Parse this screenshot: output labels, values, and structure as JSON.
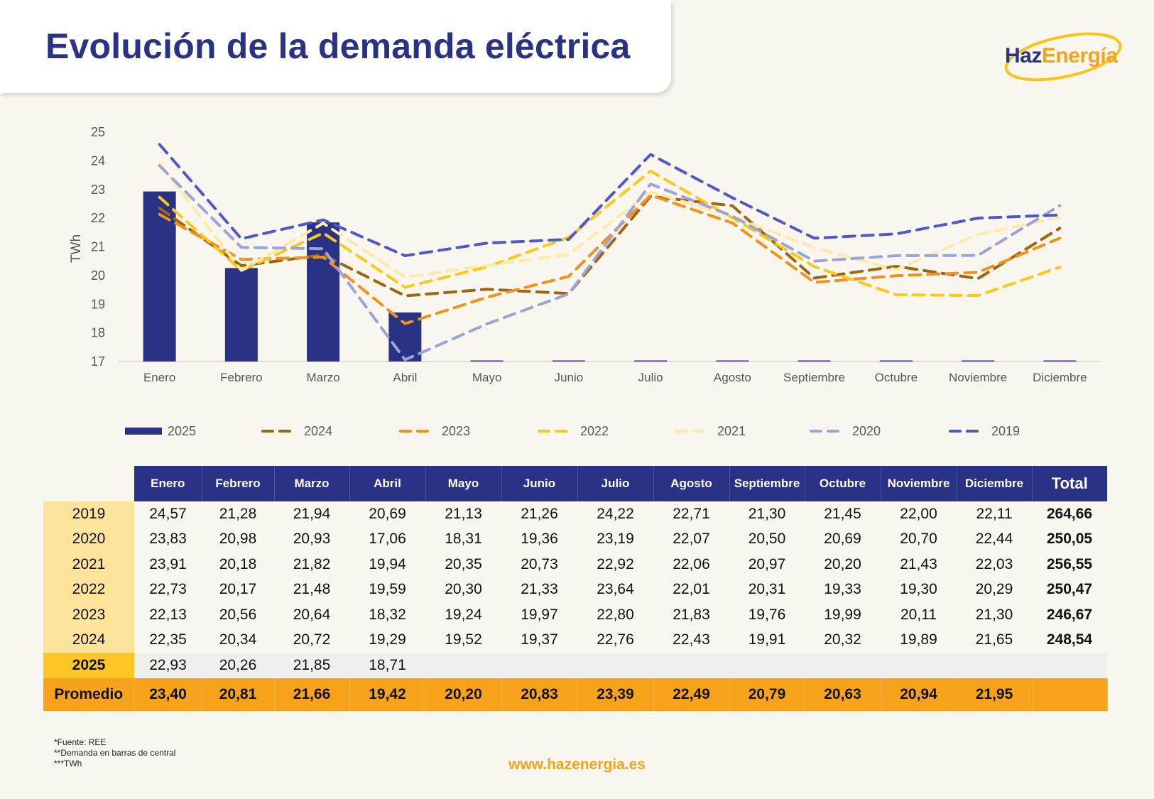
{
  "title": "Evolución de la demanda eléctrica",
  "logo": {
    "part1": "Haz",
    "part2": "Energía",
    "ring_color": "#f9c41c"
  },
  "colors": {
    "navy": "#2a3285",
    "y2024": "#a2650f",
    "y2023": "#f0921c",
    "y2022": "#fbc91a",
    "y2021": "#fde9a8",
    "y2020": "#9ca3d8",
    "y2019": "#4f58c8",
    "promedio": "#f7a21b"
  },
  "chart_data": {
    "type": "bar+line",
    "ylabel": "TWh",
    "ylim": [
      17,
      25
    ],
    "yticks": [
      17,
      18,
      19,
      20,
      21,
      22,
      23,
      24,
      25
    ],
    "categories": [
      "Enero",
      "Febrero",
      "Marzo",
      "Abril",
      "Mayo",
      "Junio",
      "Julio",
      "Agosto",
      "Septiembre",
      "Octubre",
      "Noviembre",
      "Diciembre"
    ],
    "bar_series": {
      "name": "2025",
      "values": [
        22.93,
        20.26,
        21.85,
        18.71,
        null,
        null,
        null,
        null,
        null,
        null,
        null,
        null
      ]
    },
    "line_series": [
      {
        "name": "2024",
        "values": [
          22.35,
          20.34,
          20.72,
          19.29,
          19.52,
          19.37,
          22.76,
          22.43,
          19.91,
          20.32,
          19.89,
          21.65
        ]
      },
      {
        "name": "2023",
        "values": [
          22.13,
          20.56,
          20.64,
          18.32,
          19.24,
          19.97,
          22.8,
          21.83,
          19.76,
          19.99,
          20.11,
          21.3
        ]
      },
      {
        "name": "2022",
        "values": [
          22.73,
          20.17,
          21.48,
          19.59,
          20.3,
          21.33,
          23.64,
          22.01,
          20.31,
          19.33,
          19.3,
          20.29
        ]
      },
      {
        "name": "2021",
        "values": [
          23.91,
          20.18,
          21.82,
          19.94,
          20.35,
          20.73,
          22.92,
          22.06,
          20.97,
          20.2,
          21.43,
          22.03
        ]
      },
      {
        "name": "2020",
        "values": [
          23.83,
          20.98,
          20.93,
          17.06,
          18.31,
          19.36,
          23.19,
          22.07,
          20.5,
          20.69,
          20.7,
          22.44
        ]
      },
      {
        "name": "2019",
        "values": [
          24.57,
          21.28,
          21.94,
          20.69,
          21.13,
          21.26,
          24.22,
          22.71,
          21.3,
          21.45,
          22.0,
          22.11
        ]
      }
    ],
    "legend": [
      "2025",
      "2024",
      "2023",
      "2022",
      "2021",
      "2020",
      "2019"
    ],
    "legend_placement": "bottom"
  },
  "table": {
    "headers": [
      "Enero",
      "Febrero",
      "Marzo",
      "Abril",
      "Mayo",
      "Junio",
      "Julio",
      "Agosto",
      "Septiembre",
      "Octubre",
      "Noviembre",
      "Diciembre",
      "Total"
    ],
    "rows": [
      {
        "year": "2019",
        "values": [
          "24,57",
          "21,28",
          "21,94",
          "20,69",
          "21,13",
          "21,26",
          "24,22",
          "22,71",
          "21,30",
          "21,45",
          "22,00",
          "22,11"
        ],
        "total": "264,66"
      },
      {
        "year": "2020",
        "values": [
          "23,83",
          "20,98",
          "20,93",
          "17,06",
          "18,31",
          "19,36",
          "23,19",
          "22,07",
          "20,50",
          "20,69",
          "20,70",
          "22,44"
        ],
        "total": "250,05"
      },
      {
        "year": "2021",
        "values": [
          "23,91",
          "20,18",
          "21,82",
          "19,94",
          "20,35",
          "20,73",
          "22,92",
          "22,06",
          "20,97",
          "20,20",
          "21,43",
          "22,03"
        ],
        "total": "256,55"
      },
      {
        "year": "2022",
        "values": [
          "22,73",
          "20,17",
          "21,48",
          "19,59",
          "20,30",
          "21,33",
          "23,64",
          "22,01",
          "20,31",
          "19,33",
          "19,30",
          "20,29"
        ],
        "total": "250,47"
      },
      {
        "year": "2023",
        "values": [
          "22,13",
          "20,56",
          "20,64",
          "18,32",
          "19,24",
          "19,97",
          "22,80",
          "21,83",
          "19,76",
          "19,99",
          "20,11",
          "21,30"
        ],
        "total": "246,67"
      },
      {
        "year": "2024",
        "values": [
          "22,35",
          "20,34",
          "20,72",
          "19,29",
          "19,52",
          "19,37",
          "22,76",
          "22,43",
          "19,91",
          "20,32",
          "19,89",
          "21,65"
        ],
        "total": "248,54"
      },
      {
        "year": "2025",
        "values": [
          "22,93",
          "20,26",
          "21,85",
          "18,71",
          "",
          "",
          "",
          "",
          "",
          "",
          "",
          ""
        ],
        "total": ""
      }
    ],
    "average": {
      "label": "Promedio",
      "values": [
        "23,40",
        "20,81",
        "21,66",
        "19,42",
        "20,20",
        "20,83",
        "23,39",
        "22,49",
        "20,79",
        "20,63",
        "20,94",
        "21,95"
      ],
      "total": ""
    }
  },
  "notes": [
    "*Fuente: REE",
    "**Demanda en barras de central",
    "***TWh"
  ],
  "footer_url": "www.hazenergia.es"
}
